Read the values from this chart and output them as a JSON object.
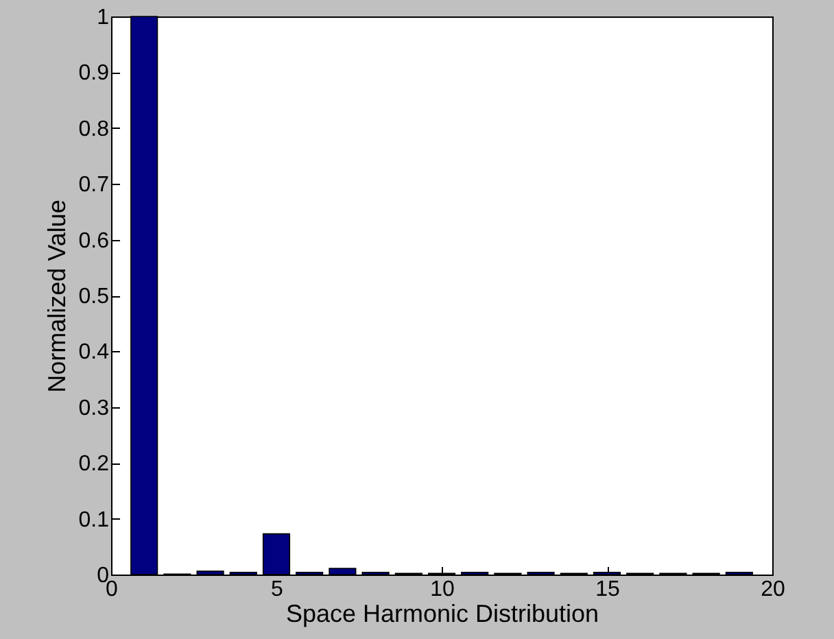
{
  "chart_data": {
    "type": "bar",
    "xlabel": "Space Harmonic Distribution",
    "ylabel": "Normalized Value",
    "x": [
      1,
      2,
      3,
      4,
      5,
      6,
      7,
      8,
      9,
      10,
      11,
      12,
      13,
      14,
      15,
      16,
      17,
      18,
      19
    ],
    "series": [
      {
        "color": "#000080",
        "values": [
          1,
          0.001,
          0.006,
          0.004,
          0.073,
          0.004,
          0.011,
          0.004,
          0.002,
          0.002,
          0.004,
          0.002,
          0.004,
          0.002,
          0.004,
          0.002,
          0.002,
          0.002,
          0.004
        ]
      }
    ],
    "xlim": [
      0,
      20
    ],
    "xticks": [
      0,
      5,
      10,
      15,
      20
    ],
    "ylim": [
      0,
      1
    ],
    "yticks": [
      0,
      0.1,
      0.2,
      0.3,
      0.4,
      0.5,
      0.6,
      0.7,
      0.8,
      0.9,
      1
    ],
    "grid": false
  }
}
